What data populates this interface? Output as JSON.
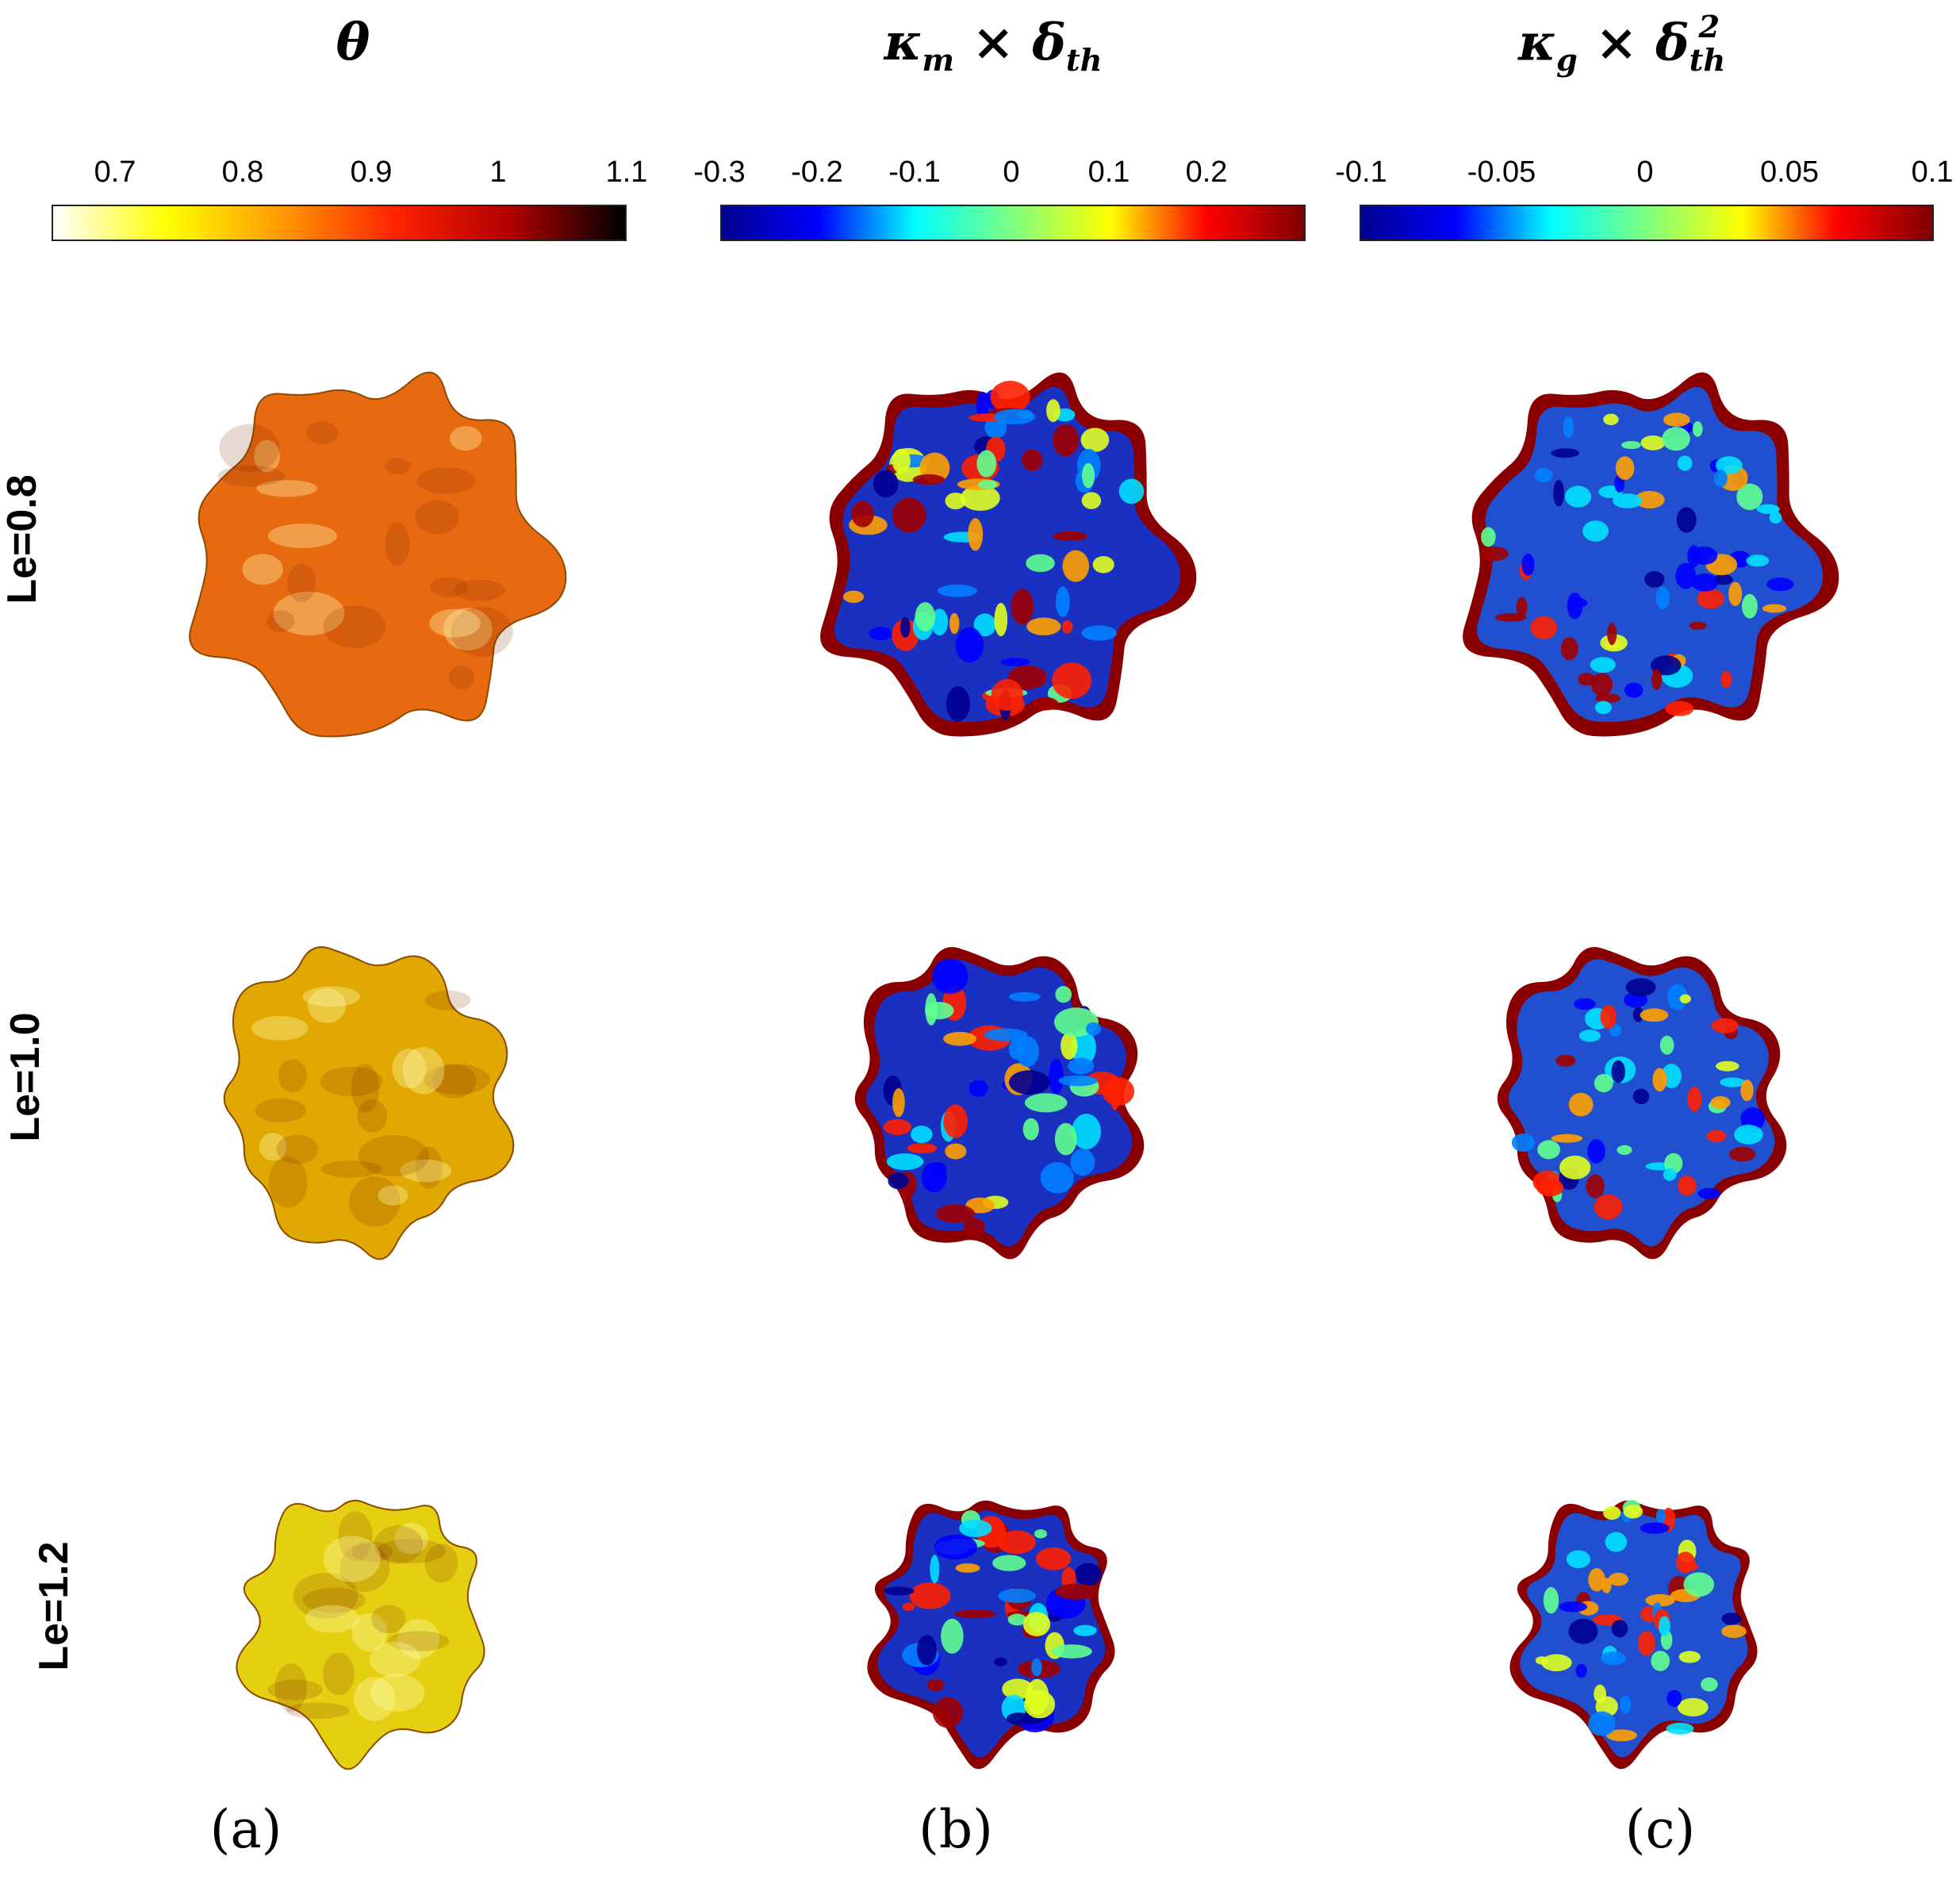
{
  "columns": [
    {
      "title_main": "θ",
      "title_sub": "",
      "title_sup": ""
    },
    {
      "title_main": "κ",
      "title_sub": "m",
      "title_rest": " × δ",
      "title_sub2": "th",
      "title_sup": ""
    },
    {
      "title_main": "κ",
      "title_sub": "g",
      "title_rest": " × δ",
      "title_sub2": "th",
      "title_sup": "2"
    }
  ],
  "colorbars": [
    {
      "ticks": [
        "0.7",
        "0.8",
        "0.9",
        "1",
        "1.1"
      ],
      "colormap": "hot-reversed",
      "colors": [
        "#ffffff",
        "#ffff00",
        "#ff9900",
        "#ff2200",
        "#b00000",
        "#000000"
      ]
    },
    {
      "ticks": [
        "-0.3",
        "-0.2",
        "-0.1",
        "0",
        "0.1",
        "0.2"
      ],
      "colormap": "jet",
      "colors": [
        "#00008f",
        "#0000ff",
        "#00ffff",
        "#7fff7f",
        "#ffff00",
        "#ff0000",
        "#800000"
      ]
    },
    {
      "ticks": [
        "-0.1",
        "-0.05",
        "0",
        "0.05",
        "0.1"
      ],
      "colormap": "jet",
      "colors": [
        "#00008f",
        "#0000ff",
        "#00ffff",
        "#7fff7f",
        "#ffff00",
        "#ff0000",
        "#800000"
      ]
    }
  ],
  "rows": [
    {
      "label": "Le=0.8",
      "theta_color": "#e86a10"
    },
    {
      "label": "Le=1.0",
      "theta_color": "#e0a800"
    },
    {
      "label": "Le=1.2",
      "theta_color": "#e4d010"
    }
  ],
  "panels": [
    "(a)",
    "(b)",
    "(c)"
  ]
}
